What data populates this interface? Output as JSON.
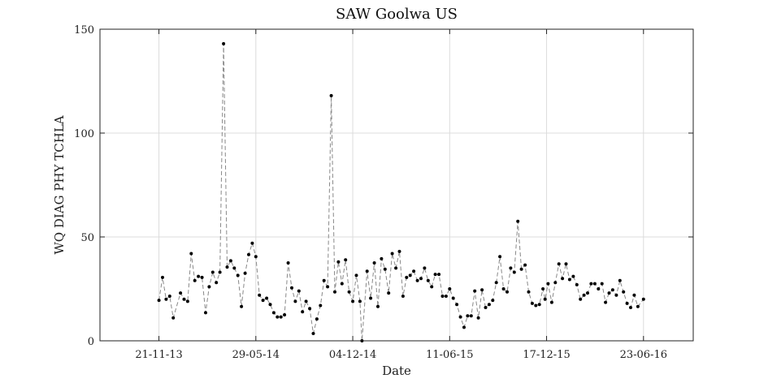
{
  "chart_data": {
    "type": "line",
    "title": "SAW Goolwa US",
    "xlabel": "Date",
    "ylabel": "WQ DIAG PHY TCHLA",
    "ylim": [
      0,
      150
    ],
    "y_ticks": [
      0,
      50,
      100,
      150
    ],
    "x_ticks": [
      "2013-11-21",
      "2014-05-29",
      "2014-12-04",
      "2015-06-11",
      "2015-12-17",
      "2016-06-23"
    ],
    "x_tick_labels": [
      "21-11-13",
      "29-05-14",
      "04-12-14",
      "11-06-15",
      "17-12-15",
      "23-06-16"
    ],
    "xlim": [
      "2013-07-29",
      "2016-09-28"
    ],
    "grid": true,
    "series": [
      {
        "color": "#888888",
        "line_style": "dashed",
        "marker_color": "#000000",
        "points": [
          [
            "2013-11-21",
            19.5
          ],
          [
            "2013-11-28",
            30.5
          ],
          [
            "2013-12-05",
            20.0
          ],
          [
            "2013-12-12",
            21.5
          ],
          [
            "2013-12-19",
            11.0
          ],
          [
            "2014-01-02",
            23.0
          ],
          [
            "2014-01-09",
            20.0
          ],
          [
            "2014-01-16",
            19.0
          ],
          [
            "2014-01-23",
            42.0
          ],
          [
            "2014-01-30",
            29.0
          ],
          [
            "2014-02-06",
            31.0
          ],
          [
            "2014-02-13",
            30.5
          ],
          [
            "2014-02-20",
            13.5
          ],
          [
            "2014-02-27",
            26.0
          ],
          [
            "2014-03-06",
            33.0
          ],
          [
            "2014-03-13",
            28.0
          ],
          [
            "2014-03-20",
            33.0
          ],
          [
            "2014-03-27",
            143.0
          ],
          [
            "2014-04-03",
            35.5
          ],
          [
            "2014-04-10",
            38.5
          ],
          [
            "2014-04-17",
            35.0
          ],
          [
            "2014-04-24",
            31.5
          ],
          [
            "2014-05-01",
            16.5
          ],
          [
            "2014-05-08",
            32.5
          ],
          [
            "2014-05-15",
            41.5
          ],
          [
            "2014-05-22",
            47.0
          ],
          [
            "2014-05-29",
            40.5
          ],
          [
            "2014-06-05",
            22.0
          ],
          [
            "2014-06-12",
            19.5
          ],
          [
            "2014-06-19",
            20.5
          ],
          [
            "2014-06-26",
            17.5
          ],
          [
            "2014-07-03",
            13.5
          ],
          [
            "2014-07-10",
            11.5
          ],
          [
            "2014-07-17",
            11.5
          ],
          [
            "2014-07-24",
            12.5
          ],
          [
            "2014-07-31",
            37.5
          ],
          [
            "2014-08-07",
            25.5
          ],
          [
            "2014-08-14",
            19.0
          ],
          [
            "2014-08-21",
            24.0
          ],
          [
            "2014-08-28",
            14.0
          ],
          [
            "2014-09-04",
            19.0
          ],
          [
            "2014-09-11",
            15.5
          ],
          [
            "2014-09-18",
            3.5
          ],
          [
            "2014-09-25",
            10.5
          ],
          [
            "2014-10-02",
            17.0
          ],
          [
            "2014-10-09",
            29.0
          ],
          [
            "2014-10-16",
            26.0
          ],
          [
            "2014-10-23",
            118.0
          ],
          [
            "2014-10-30",
            23.5
          ],
          [
            "2014-11-06",
            38.0
          ],
          [
            "2014-11-13",
            27.5
          ],
          [
            "2014-11-20",
            39.0
          ],
          [
            "2014-11-27",
            23.5
          ],
          [
            "2014-12-04",
            19.0
          ],
          [
            "2014-12-11",
            31.5
          ],
          [
            "2014-12-18",
            19.0
          ],
          [
            "2014-12-22",
            0.0
          ],
          [
            "2015-01-01",
            33.5
          ],
          [
            "2015-01-08",
            20.5
          ],
          [
            "2015-01-15",
            37.5
          ],
          [
            "2015-01-22",
            16.5
          ],
          [
            "2015-01-29",
            39.5
          ],
          [
            "2015-02-05",
            34.5
          ],
          [
            "2015-02-12",
            23.0
          ],
          [
            "2015-02-19",
            42.0
          ],
          [
            "2015-02-26",
            35.0
          ],
          [
            "2015-03-05",
            43.0
          ],
          [
            "2015-03-12",
            21.5
          ],
          [
            "2015-03-19",
            30.5
          ],
          [
            "2015-03-26",
            31.5
          ],
          [
            "2015-04-02",
            33.5
          ],
          [
            "2015-04-09",
            29.0
          ],
          [
            "2015-04-16",
            30.0
          ],
          [
            "2015-04-23",
            35.0
          ],
          [
            "2015-04-30",
            29.0
          ],
          [
            "2015-05-07",
            26.0
          ],
          [
            "2015-05-14",
            32.0
          ],
          [
            "2015-05-21",
            32.0
          ],
          [
            "2015-05-28",
            21.5
          ],
          [
            "2015-06-04",
            21.5
          ],
          [
            "2015-06-11",
            25.0
          ],
          [
            "2015-06-18",
            20.5
          ],
          [
            "2015-06-25",
            17.5
          ],
          [
            "2015-07-02",
            11.5
          ],
          [
            "2015-07-09",
            6.5
          ],
          [
            "2015-07-16",
            12.0
          ],
          [
            "2015-07-23",
            12.0
          ],
          [
            "2015-07-30",
            24.0
          ],
          [
            "2015-08-06",
            11.0
          ],
          [
            "2015-08-13",
            24.5
          ],
          [
            "2015-08-20",
            16.0
          ],
          [
            "2015-08-27",
            17.5
          ],
          [
            "2015-09-03",
            19.5
          ],
          [
            "2015-09-10",
            28.0
          ],
          [
            "2015-09-17",
            40.5
          ],
          [
            "2015-09-24",
            25.0
          ],
          [
            "2015-10-01",
            23.5
          ],
          [
            "2015-10-08",
            35.0
          ],
          [
            "2015-10-15",
            33.0
          ],
          [
            "2015-10-22",
            57.5
          ],
          [
            "2015-10-29",
            34.5
          ],
          [
            "2015-11-05",
            36.5
          ],
          [
            "2015-11-12",
            23.5
          ],
          [
            "2015-11-19",
            18.0
          ],
          [
            "2015-11-26",
            17.0
          ],
          [
            "2015-12-03",
            17.5
          ],
          [
            "2015-12-10",
            25.0
          ],
          [
            "2015-12-14",
            20.0
          ],
          [
            "2015-12-20",
            27.5
          ],
          [
            "2015-12-27",
            18.5
          ],
          [
            "2016-01-03",
            28.0
          ],
          [
            "2016-01-10",
            37.0
          ],
          [
            "2016-01-17",
            30.0
          ],
          [
            "2016-01-24",
            37.0
          ],
          [
            "2016-01-31",
            29.5
          ],
          [
            "2016-02-07",
            31.0
          ],
          [
            "2016-02-14",
            27.0
          ],
          [
            "2016-02-21",
            20.0
          ],
          [
            "2016-02-28",
            22.0
          ],
          [
            "2016-03-06",
            23.0
          ],
          [
            "2016-03-13",
            27.5
          ],
          [
            "2016-03-20",
            27.5
          ],
          [
            "2016-03-27",
            25.0
          ],
          [
            "2016-04-03",
            27.5
          ],
          [
            "2016-04-10",
            18.5
          ],
          [
            "2016-04-17",
            23.0
          ],
          [
            "2016-04-24",
            24.5
          ],
          [
            "2016-05-01",
            22.0
          ],
          [
            "2016-05-08",
            29.0
          ],
          [
            "2016-05-15",
            23.5
          ],
          [
            "2016-05-22",
            18.0
          ],
          [
            "2016-05-29",
            16.0
          ],
          [
            "2016-06-05",
            22.0
          ],
          [
            "2016-06-12",
            16.5
          ],
          [
            "2016-06-23",
            20.0
          ]
        ]
      }
    ]
  }
}
